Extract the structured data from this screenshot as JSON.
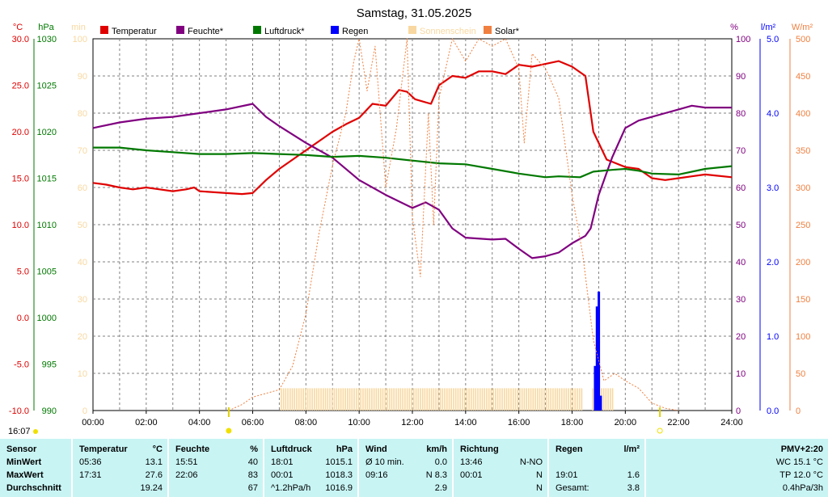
{
  "title": "Samstag, 31.05.2025",
  "colors": {
    "temperature": "#e00000",
    "humidity": "#800080",
    "pressure": "#007800",
    "rain": "#0000ff",
    "sunshine": "#f8d8a0",
    "solar": "#f08040",
    "min_axis": "#f8d8a0",
    "grid": "#808080",
    "stats_bg": "#c8f4f4"
  },
  "axes": {
    "left": [
      {
        "unit": "°C",
        "color": "#e00000",
        "ticks": [
          "30.0",
          "25.0",
          "20.0",
          "15.0",
          "10.0",
          "5.0",
          "0.0",
          "-5.0",
          "-10.0"
        ]
      },
      {
        "unit": "hPa",
        "color": "#007800",
        "ticks": [
          "1030",
          "1025",
          "1020",
          "1015",
          "1010",
          "1005",
          "1000",
          "995",
          "990"
        ]
      },
      {
        "unit": "min",
        "color": "#f8d8a0",
        "ticks": [
          "100",
          "90",
          "80",
          "70",
          "60",
          "50",
          "40",
          "30",
          "20",
          "10",
          "0"
        ]
      }
    ],
    "right": [
      {
        "unit": "%",
        "color": "#800080",
        "ticks": [
          "100",
          "90",
          "80",
          "70",
          "60",
          "50",
          "40",
          "30",
          "20",
          "10",
          "0"
        ]
      },
      {
        "unit": "l/m²",
        "color": "#0000ff",
        "ticks": [
          "5.0",
          "4.0",
          "3.0",
          "2.0",
          "1.0",
          "0.0"
        ]
      },
      {
        "unit": "W/m²",
        "color": "#f08040",
        "ticks": [
          "500",
          "450",
          "400",
          "350",
          "300",
          "250",
          "200",
          "150",
          "100",
          "50",
          "0"
        ]
      }
    ],
    "x_ticks": [
      "00:00",
      "02:00",
      "04:00",
      "06:00",
      "08:00",
      "10:00",
      "12:00",
      "14:00",
      "16:00",
      "18:00",
      "20:00",
      "22:00",
      "24:00"
    ]
  },
  "legend": [
    {
      "label": "Temperatur",
      "color": "#e00000"
    },
    {
      "label": "Feuchte*",
      "color": "#800080"
    },
    {
      "label": "Luftdruck*",
      "color": "#007800"
    },
    {
      "label": "Regen",
      "color": "#0000ff"
    },
    {
      "label": "Sonnenschein",
      "color": "#f8d8a0"
    },
    {
      "label": "Solar*",
      "color": "#f08040"
    }
  ],
  "current_time": "16:07",
  "chart_data": {
    "type": "line",
    "title": "Samstag, 31.05.2025",
    "x_unit": "hours",
    "xlim": [
      0,
      24
    ],
    "series": [
      {
        "name": "Temperatur",
        "unit": "°C",
        "ylim": [
          -10,
          30
        ],
        "color": "#e00000",
        "points": [
          [
            0,
            14.5
          ],
          [
            0.5,
            14.3
          ],
          [
            1,
            14
          ],
          [
            1.5,
            13.8
          ],
          [
            2,
            14
          ],
          [
            2.5,
            13.8
          ],
          [
            3,
            13.6
          ],
          [
            3.5,
            13.8
          ],
          [
            3.8,
            14
          ],
          [
            4,
            13.6
          ],
          [
            5,
            13.4
          ],
          [
            5.6,
            13.3
          ],
          [
            6,
            13.4
          ],
          [
            6.5,
            14.8
          ],
          [
            7,
            16
          ],
          [
            7.5,
            17
          ],
          [
            8,
            18
          ],
          [
            8.5,
            19
          ],
          [
            9,
            20
          ],
          [
            9.5,
            20.8
          ],
          [
            10,
            21.5
          ],
          [
            10.5,
            23
          ],
          [
            11,
            22.8
          ],
          [
            11.5,
            24.5
          ],
          [
            11.8,
            24.3
          ],
          [
            12.1,
            23.5
          ],
          [
            12.7,
            23
          ],
          [
            13,
            25
          ],
          [
            13.5,
            26
          ],
          [
            14,
            25.8
          ],
          [
            14.5,
            26.5
          ],
          [
            15,
            26.5
          ],
          [
            15.5,
            26.2
          ],
          [
            16,
            27.2
          ],
          [
            16.5,
            27
          ],
          [
            17,
            27.3
          ],
          [
            17.5,
            27.6
          ],
          [
            18,
            27
          ],
          [
            18.5,
            26
          ],
          [
            18.8,
            20
          ],
          [
            19.3,
            17
          ],
          [
            20,
            16.2
          ],
          [
            20.5,
            16
          ],
          [
            21,
            15
          ],
          [
            21.5,
            14.8
          ],
          [
            22,
            15
          ],
          [
            22.5,
            15.2
          ],
          [
            23,
            15.4
          ],
          [
            24,
            15.1
          ]
        ]
      },
      {
        "name": "Feuchte",
        "unit": "%",
        "ylim": [
          0,
          100
        ],
        "color": "#800080",
        "points": [
          [
            0,
            76
          ],
          [
            1,
            77.5
          ],
          [
            2,
            78.5
          ],
          [
            3,
            79
          ],
          [
            4,
            80
          ],
          [
            5,
            81
          ],
          [
            6,
            82.5
          ],
          [
            6.5,
            79
          ],
          [
            7,
            76.5
          ],
          [
            8,
            72
          ],
          [
            9,
            68
          ],
          [
            10,
            62
          ],
          [
            11,
            58
          ],
          [
            12,
            54.5
          ],
          [
            12.5,
            56
          ],
          [
            13,
            54
          ],
          [
            13.5,
            49
          ],
          [
            14,
            46.5
          ],
          [
            15,
            46
          ],
          [
            15.5,
            46.2
          ],
          [
            16,
            43.5
          ],
          [
            16.5,
            41
          ],
          [
            17,
            41.5
          ],
          [
            17.5,
            42.5
          ],
          [
            18,
            45
          ],
          [
            18.5,
            47
          ],
          [
            18.7,
            49
          ],
          [
            19,
            58
          ],
          [
            19.5,
            68
          ],
          [
            20,
            76
          ],
          [
            20.5,
            78
          ],
          [
            21,
            79
          ],
          [
            21.5,
            80
          ],
          [
            22,
            81
          ],
          [
            22.5,
            82
          ],
          [
            23,
            81.5
          ],
          [
            24,
            81.5
          ]
        ]
      },
      {
        "name": "Luftdruck",
        "unit": "hPa",
        "ylim": [
          990,
          1030
        ],
        "color": "#007800",
        "points": [
          [
            0,
            1018.3
          ],
          [
            1,
            1018.3
          ],
          [
            2,
            1018
          ],
          [
            3,
            1017.8
          ],
          [
            4,
            1017.6
          ],
          [
            5,
            1017.6
          ],
          [
            6,
            1017.7
          ],
          [
            7,
            1017.6
          ],
          [
            8,
            1017.5
          ],
          [
            9,
            1017.3
          ],
          [
            10,
            1017.4
          ],
          [
            11,
            1017.2
          ],
          [
            12,
            1016.9
          ],
          [
            13,
            1016.6
          ],
          [
            14,
            1016.5
          ],
          [
            15,
            1016
          ],
          [
            16,
            1015.5
          ],
          [
            17,
            1015.1
          ],
          [
            17.5,
            1015.2
          ],
          [
            18.3,
            1015.1
          ],
          [
            18.8,
            1015.7
          ],
          [
            19.5,
            1015.9
          ],
          [
            20,
            1016
          ],
          [
            20.5,
            1015.8
          ],
          [
            21,
            1015.5
          ],
          [
            22,
            1015.4
          ],
          [
            23,
            1016
          ],
          [
            24,
            1016.3
          ]
        ]
      },
      {
        "name": "Solar",
        "unit": "W/m²",
        "ylim": [
          0,
          500
        ],
        "color": "#f08040",
        "points": [
          [
            5.1,
            0
          ],
          [
            5.6,
            8
          ],
          [
            6,
            18
          ],
          [
            7,
            28
          ],
          [
            7.5,
            60
          ],
          [
            8,
            130
          ],
          [
            8.5,
            240
          ],
          [
            9,
            330
          ],
          [
            9.5,
            400
          ],
          [
            9.8,
            470
          ],
          [
            10,
            500
          ],
          [
            10.3,
            430
          ],
          [
            10.6,
            490
          ],
          [
            11,
            300
          ],
          [
            11.4,
            380
          ],
          [
            11.8,
            500
          ],
          [
            12,
            260
          ],
          [
            12.3,
            180
          ],
          [
            12.6,
            400
          ],
          [
            12.8,
            250
          ],
          [
            13,
            420
          ],
          [
            13.5,
            500
          ],
          [
            14,
            470
          ],
          [
            14.5,
            500
          ],
          [
            15,
            490
          ],
          [
            15.5,
            500
          ],
          [
            16,
            460
          ],
          [
            16.2,
            360
          ],
          [
            16.5,
            480
          ],
          [
            17,
            460
          ],
          [
            17.5,
            420
          ],
          [
            18,
            290
          ],
          [
            18.4,
            210
          ],
          [
            18.8,
            95
          ],
          [
            19.2,
            40
          ],
          [
            19.6,
            50
          ],
          [
            20,
            40
          ],
          [
            20.5,
            30
          ],
          [
            21,
            10
          ],
          [
            21.5,
            3
          ],
          [
            22,
            0
          ]
        ]
      },
      {
        "name": "Regen",
        "unit": "l/m²",
        "ylim": [
          0,
          5
        ],
        "type": "bar",
        "points": [
          [
            18.85,
            0.6
          ],
          [
            18.92,
            1.4
          ],
          [
            18.99,
            1.6
          ],
          [
            19.06,
            0.2
          ]
        ]
      }
    ],
    "sunshine_periods": [
      [
        7.05,
        18.35
      ],
      [
        18.75,
        19.55
      ]
    ],
    "sunshine_level_min": 6
  },
  "stats": {
    "columns": [
      {
        "head": [
          "Sensor"
        ],
        "rows": [
          [
            "MinWert"
          ],
          [
            "MaxWert"
          ],
          [
            "Durchschnitt"
          ]
        ]
      },
      {
        "head": [
          "Temperatur",
          "°C"
        ],
        "rows": [
          [
            "05:36",
            "13.1"
          ],
          [
            "17:31",
            "27.6"
          ],
          [
            "",
            "19.24"
          ]
        ]
      },
      {
        "head": [
          "Feuchte",
          "%"
        ],
        "rows": [
          [
            "15:51",
            "40"
          ],
          [
            "22:06",
            "83"
          ],
          [
            "",
            "67"
          ]
        ]
      },
      {
        "head": [
          "Luftdruck",
          "hPa"
        ],
        "rows": [
          [
            "18:01",
            "1015.1"
          ],
          [
            "00:01",
            "1018.3"
          ],
          [
            "^1.2hPa/h",
            "1016.9"
          ]
        ]
      },
      {
        "head": [
          "Wind",
          "km/h"
        ],
        "rows": [
          [
            "Ø 10 min.",
            "0.0"
          ],
          [
            "09:16",
            "N 8.3"
          ],
          [
            "",
            "2.9"
          ]
        ]
      },
      {
        "head": [
          "Richtung",
          ""
        ],
        "rows": [
          [
            "13:46",
            "N-NO"
          ],
          [
            "00:01",
            "N"
          ],
          [
            "",
            "N"
          ]
        ]
      },
      {
        "head": [
          "Regen",
          "l/m²"
        ],
        "rows": [
          [
            "",
            ""
          ],
          [
            "19:01",
            "1.6"
          ],
          [
            "Gesamt:",
            "3.8"
          ]
        ]
      },
      {
        "head": [
          "",
          "PMV+2:20"
        ],
        "rows": [
          [
            "",
            "WC 15.1 °C"
          ],
          [
            "",
            "TP 12.0 °C"
          ],
          [
            "",
            "0.4hPa/3h"
          ]
        ]
      }
    ]
  }
}
